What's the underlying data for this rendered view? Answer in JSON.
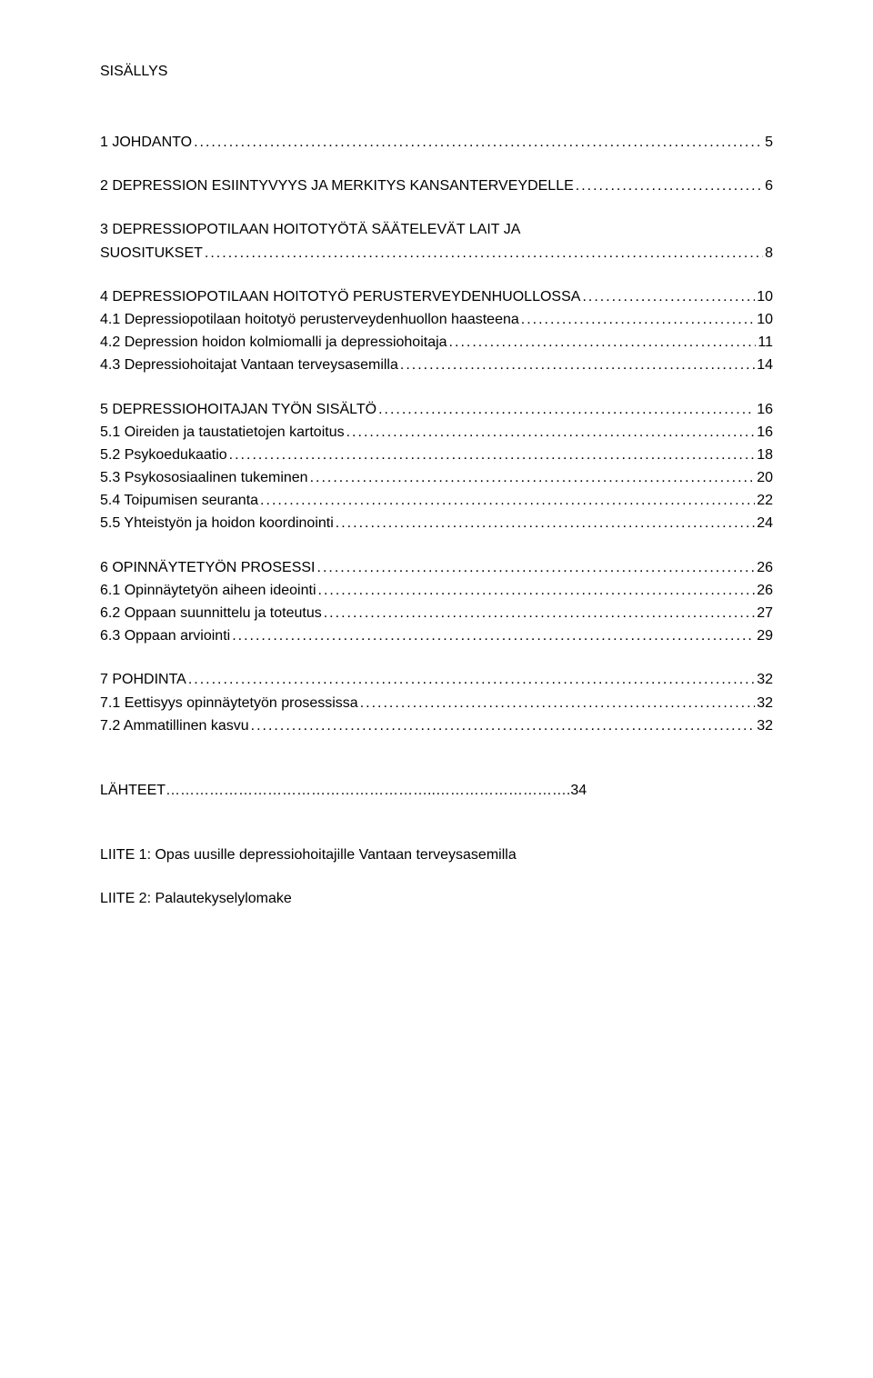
{
  "title": "SISÄLLYS",
  "entries": [
    {
      "type": "blank"
    },
    {
      "type": "line",
      "label": "1 JOHDANTO",
      "page": "5"
    },
    {
      "type": "blank"
    },
    {
      "type": "line",
      "label": "2 DEPRESSION ESIINTYVYYS JA MERKITYS KANSANTERVEYDELLE",
      "page": "6"
    },
    {
      "type": "blank"
    },
    {
      "type": "line",
      "label": "3 DEPRESSIOPOTILAAN HOITOTYÖTÄ SÄÄTELEVÄT LAIT JA",
      "page": ""
    },
    {
      "type": "line",
      "label": "SUOSITUKSET",
      "page": "8"
    },
    {
      "type": "blank"
    },
    {
      "type": "line",
      "label": "4 DEPRESSIOPOTILAAN HOITOTYÖ PERUSTERVEYDENHUOLLOSSA",
      "page": "10"
    },
    {
      "type": "line",
      "label": "4.1 Depressiopotilaan hoitotyö perusterveydenhuollon haasteena",
      "page": "10"
    },
    {
      "type": "line",
      "label": "4.2 Depression hoidon kolmiomalli ja depressiohoitaja",
      "page": "11"
    },
    {
      "type": "line",
      "label": "4.3 Depressiohoitajat Vantaan terveysasemilla",
      "page": "14"
    },
    {
      "type": "blank"
    },
    {
      "type": "line",
      "label": "5 DEPRESSIOHOITAJAN TYÖN SISÄLTÖ",
      "page": "16"
    },
    {
      "type": "line",
      "label": "5.1 Oireiden ja taustatietojen kartoitus",
      "page": "16"
    },
    {
      "type": "line",
      "label": "5.2 Psykoedukaatio",
      "page": "18"
    },
    {
      "type": "line",
      "label": "5.3 Psykososiaalinen tukeminen",
      "page": "20"
    },
    {
      "type": "line",
      "label": "5.4 Toipumisen seuranta",
      "page": "22"
    },
    {
      "type": "line",
      "label": "5.5 Yhteistyön ja hoidon koordinointi",
      "page": "24"
    },
    {
      "type": "blank"
    },
    {
      "type": "line",
      "label": "6 OPINNÄYTETYÖN PROSESSI",
      "page": "26"
    },
    {
      "type": "line",
      "label": "6.1 Opinnäytetyön aiheen ideointi",
      "page": "26"
    },
    {
      "type": "line",
      "label": "6.2 Oppaan suunnittelu ja toteutus",
      "page": "27"
    },
    {
      "type": "line",
      "label": "6.3 Oppaan arviointi",
      "page": "29"
    },
    {
      "type": "blank"
    },
    {
      "type": "line",
      "label": "7 POHDINTA",
      "page": "32"
    },
    {
      "type": "line",
      "label": "7.1 Eettisyys opinnäytetyön prosessissa",
      "page": "32"
    },
    {
      "type": "line",
      "label": "7.2 Ammatillinen kasvu",
      "page": "32"
    },
    {
      "type": "blankbig"
    },
    {
      "type": "plain",
      "label": "LÄHTEET………………………………………………..……………………….34"
    },
    {
      "type": "blankbig"
    },
    {
      "type": "plain",
      "label": "LIITE 1: Opas uusille depressiohoitajille Vantaan terveysasemilla"
    },
    {
      "type": "blank"
    },
    {
      "type": "plain",
      "label": "LIITE 2: Palautekyselylomake"
    }
  ]
}
